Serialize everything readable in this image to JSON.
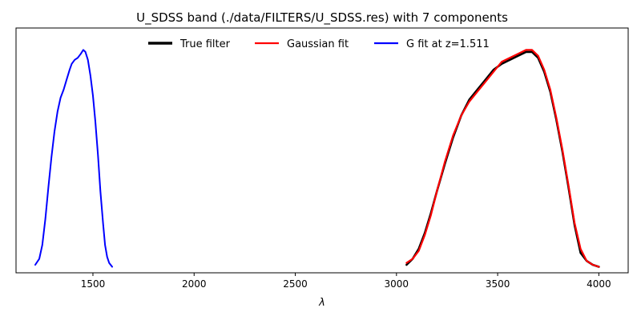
{
  "chart_data": {
    "type": "line",
    "title": "U_SDSS band (./data/FILTERS/U_SDSS.res) with 7 components",
    "xlabel": "λ",
    "ylabel": "",
    "xlim": [
      1120,
      4145
    ],
    "ylim": [
      -0.03,
      1.2
    ],
    "x_ticks": [
      1500,
      2000,
      2500,
      3000,
      3500,
      4000
    ],
    "y_ticks": [],
    "grid": false,
    "legend": {
      "position": "top-center",
      "columns": 3
    },
    "series": [
      {
        "name": "True filter",
        "color": "#000000",
        "x": [
          3050,
          3080,
          3110,
          3140,
          3170,
          3200,
          3240,
          3280,
          3320,
          3360,
          3400,
          3440,
          3480,
          3520,
          3560,
          3600,
          3640,
          3670,
          3700,
          3730,
          3760,
          3790,
          3820,
          3850,
          3880,
          3910,
          3940,
          3970,
          4000
        ],
        "y": [
          0.01,
          0.04,
          0.09,
          0.17,
          0.27,
          0.38,
          0.52,
          0.65,
          0.76,
          0.84,
          0.89,
          0.94,
          0.99,
          1.02,
          1.04,
          1.06,
          1.08,
          1.08,
          1.05,
          0.98,
          0.88,
          0.74,
          0.58,
          0.4,
          0.21,
          0.07,
          0.03,
          0.01,
          0.0
        ]
      },
      {
        "name": "Gaussian fit",
        "color": "#ff0000",
        "x": [
          3050,
          3080,
          3110,
          3140,
          3170,
          3200,
          3240,
          3280,
          3320,
          3360,
          3400,
          3440,
          3480,
          3520,
          3560,
          3600,
          3640,
          3670,
          3700,
          3730,
          3760,
          3790,
          3820,
          3850,
          3880,
          3910,
          3940,
          3970,
          4000
        ],
        "y": [
          0.02,
          0.04,
          0.08,
          0.16,
          0.26,
          0.38,
          0.53,
          0.66,
          0.76,
          0.83,
          0.88,
          0.93,
          0.98,
          1.03,
          1.05,
          1.07,
          1.09,
          1.09,
          1.06,
          0.99,
          0.89,
          0.75,
          0.59,
          0.41,
          0.22,
          0.09,
          0.03,
          0.01,
          0.0
        ]
      },
      {
        "name": "G fit at z=1.511",
        "color": "#0000ff",
        "x": [
          1215,
          1235,
          1250,
          1265,
          1280,
          1295,
          1310,
          1325,
          1340,
          1355,
          1370,
          1385,
          1395,
          1410,
          1425,
          1440,
          1452,
          1463,
          1475,
          1488,
          1500,
          1512,
          1525,
          1537,
          1550,
          1560,
          1570,
          1580,
          1595
        ],
        "y": [
          0.01,
          0.04,
          0.11,
          0.24,
          0.4,
          0.55,
          0.68,
          0.78,
          0.85,
          0.89,
          0.94,
          0.99,
          1.02,
          1.04,
          1.05,
          1.07,
          1.09,
          1.08,
          1.04,
          0.96,
          0.86,
          0.73,
          0.56,
          0.38,
          0.22,
          0.11,
          0.05,
          0.02,
          0.0
        ]
      }
    ]
  }
}
